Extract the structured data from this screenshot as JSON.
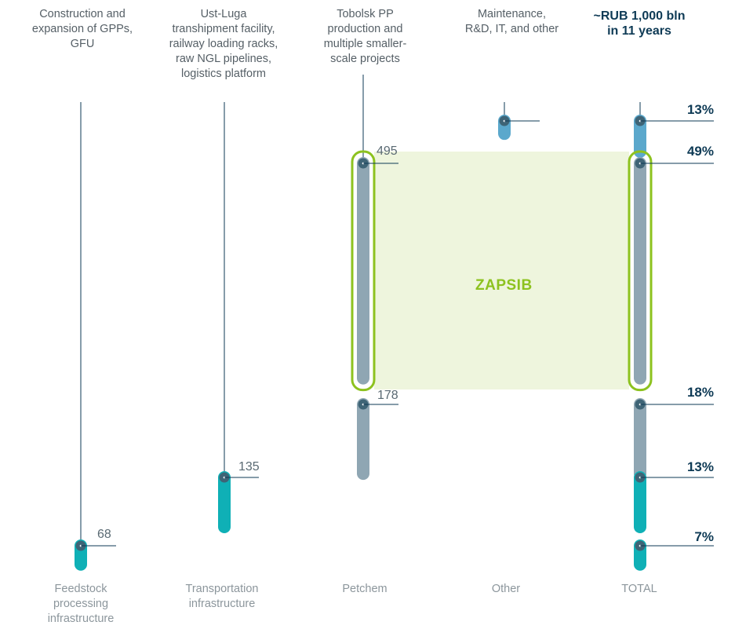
{
  "chart_data": {
    "type": "bar",
    "title": "~RUB 1,000 bln\nin 11 years",
    "columns": [
      {
        "top_label": "Construction and\nexpansion of GPPs,\nGFU",
        "category": "Feedstock\nprocessing\ninfrastructure",
        "value": 68,
        "value_label": "68"
      },
      {
        "top_label": "Ust-Luga\ntranshipment facility,\nrailway loading racks,\nraw NGL pipelines,\nlogistics platform",
        "category": "Transportation\ninfrastructure",
        "value": 135,
        "value_label": "135"
      },
      {
        "top_label": "Tobolsk PP\nproduction and\nmultiple smaller-\nscale projects",
        "category": "Petchem",
        "segments": [
          {
            "value": 495,
            "label": "495",
            "highlight": true
          },
          {
            "value": 178,
            "label": "178",
            "highlight": false
          }
        ]
      },
      {
        "top_label": "Maintenance,\nR&D, IT, and other",
        "category": "Other"
      },
      {
        "top_label": "",
        "category": "TOTAL"
      }
    ],
    "total_breakdown": [
      {
        "label": "13%",
        "percent": 13,
        "component": "Other",
        "color": "#5ba8cc"
      },
      {
        "label": "49%",
        "percent": 49,
        "component": "Petchem (ZAPSIB)",
        "color": "#8fa6b3",
        "highlight": true
      },
      {
        "label": "18%",
        "percent": 18,
        "component": "Petchem (other)",
        "color": "#8fa6b3"
      },
      {
        "label": "13%",
        "percent": 13,
        "component": "Transportation infrastructure",
        "color": "#0fb0b6"
      },
      {
        "label": "7%",
        "percent": 7,
        "component": "Feedstock processing infrastructure",
        "color": "#0fb0b6"
      }
    ],
    "highlight_label": "ZAPSIB",
    "colors": {
      "teal": "#0fb0b6",
      "grey_blue": "#8fa6b3",
      "light_blue": "#5ba8cc",
      "dot": "#3e6476",
      "green": "#8dc21f",
      "green_fill": "#eef5dd",
      "line": "#0e3a55"
    },
    "legend": "none",
    "grid": false
  }
}
